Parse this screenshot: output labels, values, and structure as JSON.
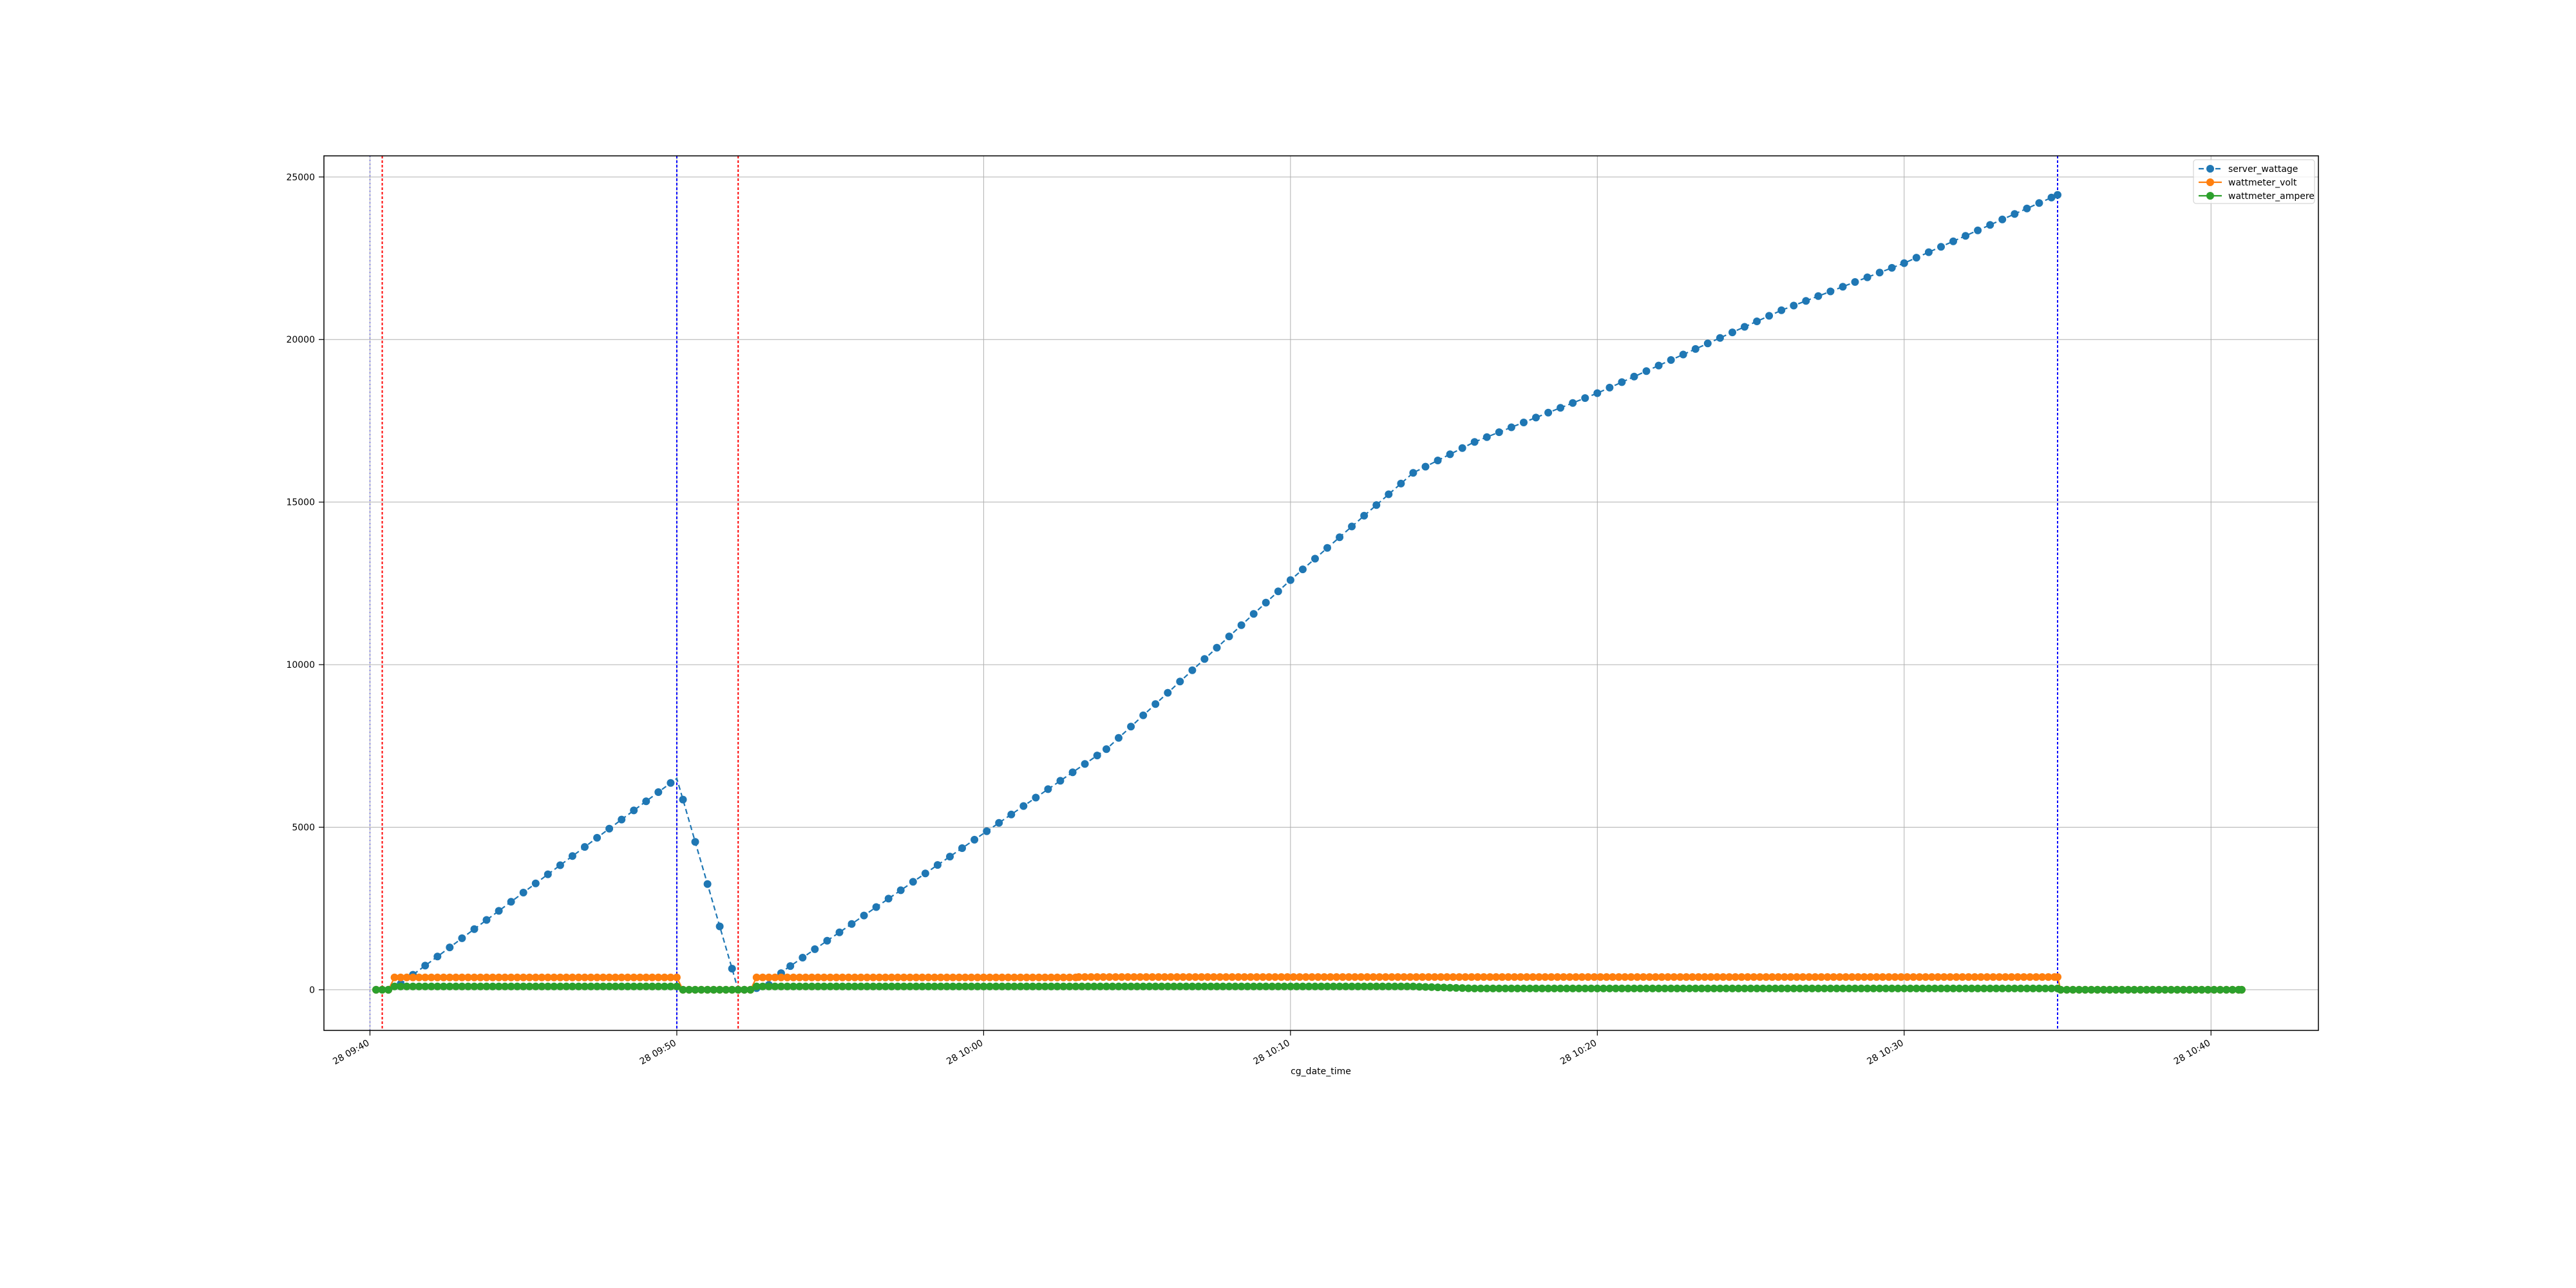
{
  "chart_data": {
    "type": "line",
    "title": "",
    "xlabel": "cg_date_time",
    "ylabel": "",
    "xlim": [
      "2024-01-28T09:38:30",
      "2024-01-28T10:43:30"
    ],
    "ylim": [
      -1250,
      25650
    ],
    "grid": true,
    "legend_position": "top-right",
    "x_tick_labels": [
      "28 09:40",
      "28 09:50",
      "28 10:00",
      "28 10:10",
      "28 10:20",
      "28 10:30",
      "28 10:40"
    ],
    "y_tick_labels": [
      "0",
      "5000",
      "10000",
      "15000",
      "20000",
      "25000"
    ],
    "colors": {
      "server_wattage": "#1f77b4",
      "wattmeter_volt": "#ff7f0e",
      "wattmeter_ampere": "#2ca02c",
      "marker_start": "#ff0000",
      "marker_end": "#0000ff"
    },
    "vertical_markers": [
      {
        "time": "2024-01-28T09:40:00",
        "color": "#0000ff",
        "style": "dotted",
        "alpha": 0.35
      },
      {
        "time": "2024-01-28T09:40:24",
        "color": "#ff0000",
        "style": "dashed"
      },
      {
        "time": "2024-01-28T09:50:00",
        "color": "#0000ff",
        "style": "dashed"
      },
      {
        "time": "2024-01-28T09:52:00",
        "color": "#ff0000",
        "style": "dashed"
      },
      {
        "time": "2024-01-28T10:35:00",
        "color": "#0000ff",
        "style": "dashed"
      }
    ],
    "series": [
      {
        "name": "server_wattage",
        "linestyle": "dashed",
        "points": [
          [
            "2024-01-28T09:40:12",
            0
          ],
          [
            "2024-01-28T09:40:24",
            0
          ],
          [
            "2024-01-28T09:40:36",
            0
          ],
          [
            "2024-01-28T09:41:00",
            180
          ],
          [
            "2024-01-28T09:50:00",
            6500
          ],
          [
            "2024-01-28T09:52:00",
            0
          ],
          [
            "2024-01-28T09:52:12",
            0
          ],
          [
            "2024-01-28T09:52:24",
            0
          ],
          [
            "2024-01-28T09:53:00",
            150
          ],
          [
            "2024-01-28T09:53:30",
            600
          ],
          [
            "2024-01-28T10:04:00",
            7400
          ],
          [
            "2024-01-28T10:10:00",
            12600
          ],
          [
            "2024-01-28T10:14:00",
            15900
          ],
          [
            "2024-01-28T10:16:00",
            16850
          ],
          [
            "2024-01-28T10:20:00",
            18350
          ],
          [
            "2024-01-28T10:26:00",
            20900
          ],
          [
            "2024-01-28T10:30:00",
            22350
          ],
          [
            "2024-01-28T10:35:00",
            24450
          ]
        ]
      },
      {
        "name": "wattmeter_volt",
        "linestyle": "solid",
        "points": [
          [
            "2024-01-28T09:40:12",
            0
          ],
          [
            "2024-01-28T09:40:36",
            0
          ],
          [
            "2024-01-28T09:40:48",
            380
          ],
          [
            "2024-01-28T09:50:00",
            380
          ],
          [
            "2024-01-28T09:50:12",
            0
          ],
          [
            "2024-01-28T09:52:24",
            0
          ],
          [
            "2024-01-28T09:52:36",
            380
          ],
          [
            "2024-01-28T10:03:00",
            380
          ],
          [
            "2024-01-28T10:03:06",
            392
          ],
          [
            "2024-01-28T10:35:00",
            392
          ],
          [
            "2024-01-28T10:35:06",
            0
          ],
          [
            "2024-01-28T10:41:00",
            0
          ]
        ]
      },
      {
        "name": "wattmeter_ampere",
        "linestyle": "solid",
        "points": [
          [
            "2024-01-28T09:40:12",
            0
          ],
          [
            "2024-01-28T09:40:36",
            0
          ],
          [
            "2024-01-28T09:40:48",
            100
          ],
          [
            "2024-01-28T09:50:00",
            100
          ],
          [
            "2024-01-28T09:50:12",
            0
          ],
          [
            "2024-01-28T09:52:24",
            0
          ],
          [
            "2024-01-28T09:52:36",
            100
          ],
          [
            "2024-01-28T10:14:00",
            100
          ],
          [
            "2024-01-28T10:16:00",
            40
          ],
          [
            "2024-01-28T10:35:00",
            40
          ],
          [
            "2024-01-28T10:35:06",
            0
          ],
          [
            "2024-01-28T10:41:00",
            0
          ]
        ]
      }
    ]
  }
}
